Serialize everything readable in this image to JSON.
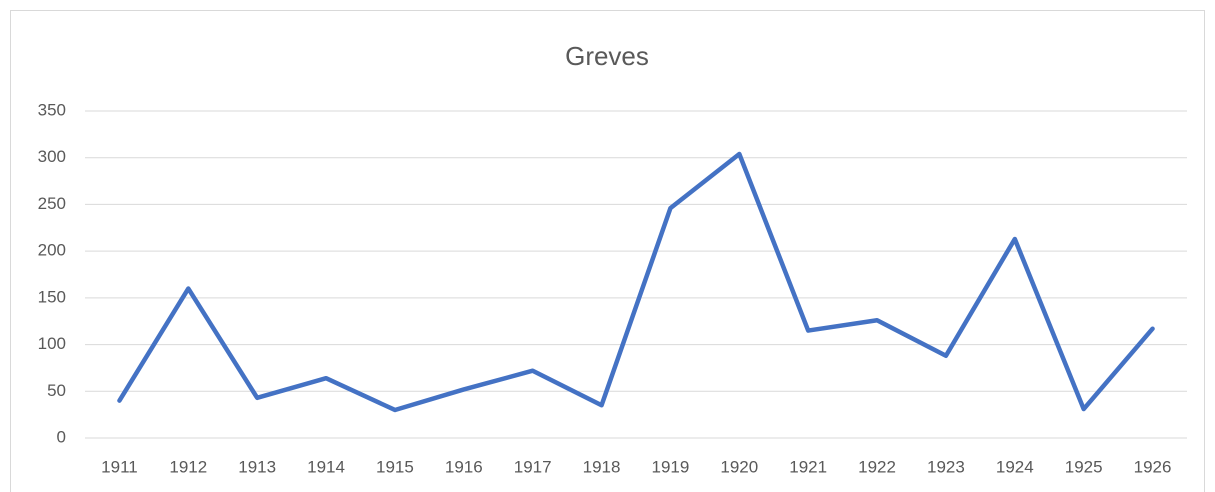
{
  "chart_data": {
    "type": "line",
    "title": "Greves",
    "categories": [
      "1911",
      "1912",
      "1913",
      "1914",
      "1915",
      "1916",
      "1917",
      "1918",
      "1919",
      "1920",
      "1921",
      "1922",
      "1923",
      "1924",
      "1925",
      "1926"
    ],
    "series": [
      {
        "name": "Greves",
        "color": "#4472c4",
        "values": [
          40,
          160,
          43,
          64,
          30,
          52,
          72,
          35,
          246,
          304,
          115,
          126,
          88,
          213,
          31,
          117
        ]
      }
    ],
    "ylim": [
      0,
      350
    ],
    "yticks": [
      0,
      50,
      100,
      150,
      200,
      250,
      300,
      350
    ],
    "grid": true
  }
}
